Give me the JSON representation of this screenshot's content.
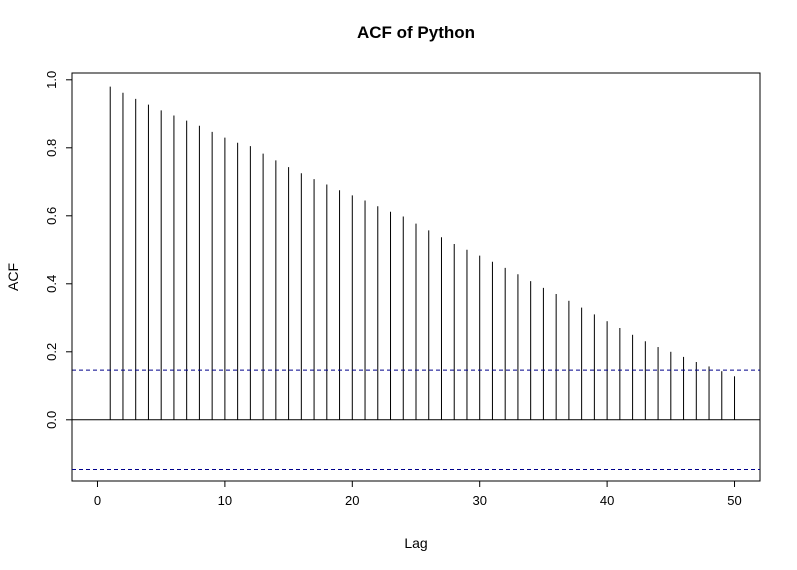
{
  "chart_data": {
    "type": "bar",
    "title": "ACF of Python",
    "xlabel": "Lag",
    "ylabel": "ACF",
    "xlim": [
      -2,
      52
    ],
    "ylim": [
      -0.18,
      1.02
    ],
    "x_ticks": [
      0,
      10,
      20,
      30,
      40,
      50
    ],
    "x_tick_labels": [
      "0",
      "10",
      "20",
      "30",
      "40",
      "50"
    ],
    "y_ticks": [
      0.0,
      0.2,
      0.4,
      0.6,
      0.8,
      1.0
    ],
    "y_tick_labels": [
      "0.0",
      "0.2",
      "0.4",
      "0.6",
      "0.8",
      "1.0"
    ],
    "lags": [
      1,
      2,
      3,
      4,
      5,
      6,
      7,
      8,
      9,
      10,
      11,
      12,
      13,
      14,
      15,
      16,
      17,
      18,
      19,
      20,
      21,
      22,
      23,
      24,
      25,
      26,
      27,
      28,
      29,
      30,
      31,
      32,
      33,
      34,
      35,
      36,
      37,
      38,
      39,
      40,
      41,
      42,
      43,
      44,
      45,
      46,
      47,
      48,
      49,
      50
    ],
    "values": [
      0.98,
      0.962,
      0.944,
      0.927,
      0.91,
      0.895,
      0.88,
      0.865,
      0.847,
      0.83,
      0.815,
      0.805,
      0.783,
      0.763,
      0.743,
      0.725,
      0.708,
      0.692,
      0.675,
      0.66,
      0.645,
      0.628,
      0.612,
      0.598,
      0.577,
      0.557,
      0.537,
      0.517,
      0.5,
      0.483,
      0.465,
      0.447,
      0.428,
      0.408,
      0.388,
      0.37,
      0.35,
      0.33,
      0.31,
      0.29,
      0.27,
      0.25,
      0.231,
      0.214,
      0.2,
      0.185,
      0.17,
      0.157,
      0.143,
      0.128
    ],
    "confidence_bound": 0.146,
    "grid": false,
    "colors": {
      "bars": "#000000",
      "ci_line": "#00008b",
      "zero_line": "#000000"
    }
  }
}
